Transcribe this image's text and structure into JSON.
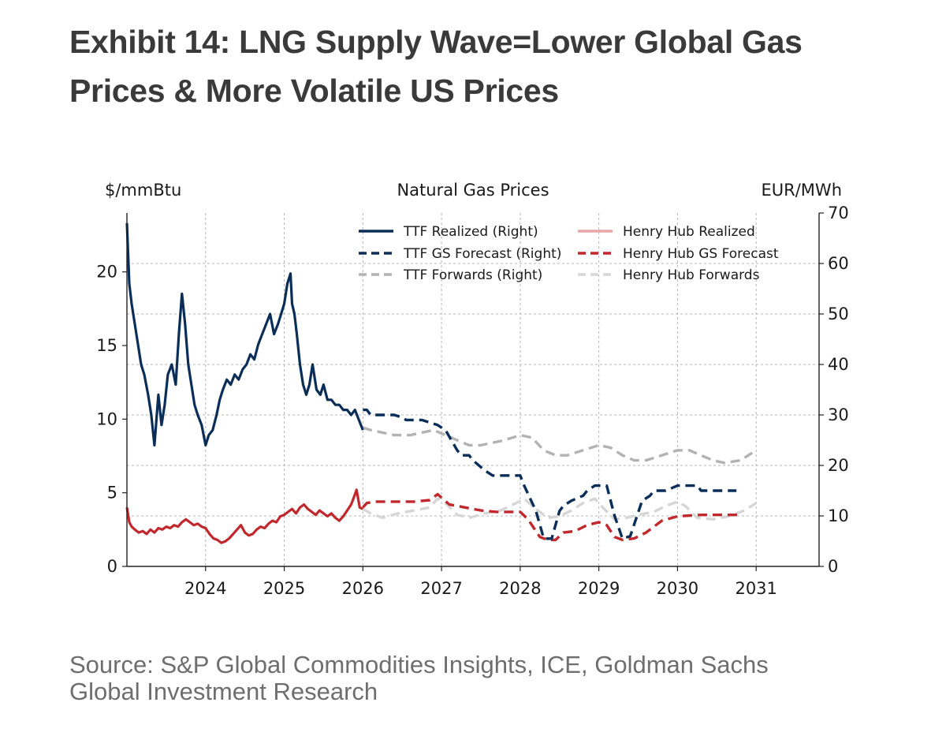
{
  "title": {
    "line1": "Exhibit 14: LNG Supply Wave=Lower Global Gas",
    "line2": "Prices & More Volatile US Prices"
  },
  "source": {
    "line1": "Source: S&P Global Commodities Insights, ICE, Goldman Sachs",
    "line2": "Global Investment Research"
  },
  "chart_data": {
    "type": "line",
    "title": "Natural Gas Prices",
    "ylabel_left": "$/mmBtu",
    "ylabel_right": "EUR/MWh",
    "xlim": [
      2023.0,
      2031.8
    ],
    "ylim_left": [
      0,
      24
    ],
    "ylim_right": [
      0,
      70
    ],
    "xticks": [
      2024,
      2025,
      2026,
      2027,
      2028,
      2029,
      2030,
      2031
    ],
    "xtick_labels": [
      "2024",
      "2025",
      "2026",
      "2027",
      "2028",
      "2029",
      "2030",
      "2031"
    ],
    "yticks_left": [
      0,
      5,
      10,
      15,
      20
    ],
    "yticks_left_labels": [
      "0",
      "5",
      "10",
      "15",
      "20"
    ],
    "yticks_right": [
      0,
      10,
      20,
      30,
      40,
      50,
      60,
      70
    ],
    "yticks_right_labels": [
      "0",
      "10",
      "20",
      "30",
      "40",
      "50",
      "60",
      "70"
    ],
    "grid": true,
    "legend_position": "top-right",
    "series": [
      {
        "name": "TTF Realized (Right)",
        "axis": "right",
        "style": "solid",
        "color": "#0b2e59",
        "x": [
          2023.0,
          2023.03,
          2023.06,
          2023.1,
          2023.14,
          2023.18,
          2023.22,
          2023.27,
          2023.31,
          2023.35,
          2023.4,
          2023.44,
          2023.48,
          2023.52,
          2023.57,
          2023.62,
          2023.66,
          2023.7,
          2023.74,
          2023.78,
          2023.82,
          2023.86,
          2023.9,
          2023.95,
          2024.0,
          2024.04,
          2024.09,
          2024.14,
          2024.18,
          2024.22,
          2024.27,
          2024.32,
          2024.37,
          2024.42,
          2024.47,
          2024.52,
          2024.57,
          2024.62,
          2024.67,
          2024.72,
          2024.77,
          2024.82,
          2024.87,
          2024.92,
          2024.96,
          2025.0,
          2025.04,
          2025.08,
          2025.1,
          2025.13,
          2025.16,
          2025.2,
          2025.24,
          2025.28,
          2025.32,
          2025.36,
          2025.41,
          2025.46,
          2025.5,
          2025.55,
          2025.6,
          2025.65,
          2025.7,
          2025.75,
          2025.8,
          2025.85,
          2025.9,
          2025.95,
          2026.0
        ],
        "y": [
          68,
          56,
          52,
          48,
          44,
          40,
          38,
          34,
          30,
          24,
          34,
          28,
          32,
          38,
          40,
          36,
          46,
          54,
          48,
          40,
          36,
          32,
          30,
          28,
          24,
          26,
          27,
          30,
          33,
          35,
          37,
          36,
          38,
          37,
          39,
          40,
          42,
          41,
          44,
          46,
          48,
          50,
          46,
          48,
          50,
          52,
          56,
          58,
          52,
          50,
          46,
          40,
          36,
          34,
          36,
          40,
          35,
          34,
          36,
          33,
          33,
          32,
          32,
          31,
          31,
          30,
          31,
          29,
          27
        ]
      },
      {
        "name": "TTF GS Forecast (Right)",
        "axis": "right",
        "style": "dashed",
        "color": "#0b2e59",
        "x": [
          2026.0,
          2026.05,
          2026.1,
          2026.4,
          2026.5,
          2026.55,
          2026.75,
          2026.85,
          2026.95,
          2027.05,
          2027.2,
          2027.25,
          2027.35,
          2027.4,
          2027.55,
          2027.65,
          2028.0,
          2028.05,
          2028.2,
          2028.3,
          2028.4,
          2028.5,
          2028.55,
          2028.65,
          2028.8,
          2028.85,
          2028.95,
          2029.1,
          2029.2,
          2029.3,
          2029.4,
          2029.55,
          2029.65,
          2029.7,
          2029.8,
          2029.85,
          2030.0,
          2030.25,
          2030.3,
          2030.75
        ],
        "y": [
          31,
          31,
          30,
          30,
          29.5,
          29,
          29,
          28.5,
          28,
          27,
          23,
          22,
          22,
          21,
          19,
          18,
          18,
          16,
          11,
          5.5,
          5.5,
          11,
          12,
          13,
          14,
          15,
          16,
          16,
          10,
          5.5,
          6,
          13,
          14,
          15,
          15,
          15,
          16,
          16,
          15,
          15
        ]
      },
      {
        "name": "TTF Forwards (Right)",
        "axis": "right",
        "style": "dashed",
        "color": "#b3b3b3",
        "x": [
          2026.0,
          2026.1,
          2026.25,
          2026.4,
          2026.6,
          2026.75,
          2026.9,
          2027.05,
          2027.2,
          2027.35,
          2027.5,
          2027.65,
          2027.8,
          2028.0,
          2028.15,
          2028.3,
          2028.45,
          2028.6,
          2028.8,
          2029.0,
          2029.15,
          2029.3,
          2029.45,
          2029.6,
          2029.8,
          2030.0,
          2030.15,
          2030.3,
          2030.45,
          2030.6,
          2030.8,
          2030.95
        ],
        "y": [
          27.5,
          27,
          26.5,
          26,
          26,
          26.5,
          27,
          26,
          25,
          24,
          24,
          24.5,
          25,
          26,
          25.5,
          23,
          22,
          22,
          23,
          24,
          23.5,
          22,
          21,
          21,
          22,
          23,
          23,
          22,
          21,
          20.5,
          21,
          22.5
        ]
      },
      {
        "name": "Henry Hub Realized",
        "axis": "left",
        "style": "solid",
        "color": "#c0282d",
        "x": [
          2023.0,
          2023.03,
          2023.06,
          2023.1,
          2023.15,
          2023.2,
          2023.25,
          2023.3,
          2023.35,
          2023.4,
          2023.45,
          2023.5,
          2023.55,
          2023.6,
          2023.65,
          2023.7,
          2023.75,
          2023.8,
          2023.85,
          2023.9,
          2023.95,
          2024.0,
          2024.05,
          2024.1,
          2024.15,
          2024.2,
          2024.25,
          2024.3,
          2024.35,
          2024.4,
          2024.45,
          2024.5,
          2024.55,
          2024.6,
          2024.65,
          2024.7,
          2024.75,
          2024.8,
          2024.85,
          2024.9,
          2024.95,
          2025.0,
          2025.05,
          2025.1,
          2025.15,
          2025.2,
          2025.25,
          2025.3,
          2025.35,
          2025.4,
          2025.45,
          2025.5,
          2025.55,
          2025.6,
          2025.65,
          2025.7,
          2025.75,
          2025.8,
          2025.85,
          2025.88,
          2025.92,
          2025.96,
          2026.0
        ],
        "y": [
          4.0,
          3.0,
          2.7,
          2.5,
          2.3,
          2.4,
          2.2,
          2.5,
          2.3,
          2.6,
          2.5,
          2.7,
          2.6,
          2.8,
          2.7,
          3.0,
          3.2,
          3.0,
          2.8,
          2.9,
          2.7,
          2.6,
          2.2,
          1.9,
          1.8,
          1.6,
          1.7,
          1.9,
          2.2,
          2.5,
          2.8,
          2.3,
          2.1,
          2.2,
          2.5,
          2.7,
          2.6,
          2.9,
          3.1,
          3.0,
          3.4,
          3.5,
          3.7,
          3.9,
          3.6,
          4.0,
          4.2,
          3.9,
          3.7,
          3.5,
          3.8,
          3.6,
          3.4,
          3.6,
          3.3,
          3.1,
          3.4,
          3.8,
          4.2,
          4.6,
          5.2,
          4.0,
          3.9
        ]
      },
      {
        "name": "Henry Hub GS Forecast",
        "axis": "left",
        "style": "dashed",
        "color": "#c0282d",
        "x": [
          2026.0,
          2026.05,
          2026.15,
          2026.4,
          2026.65,
          2026.85,
          2026.95,
          2027.1,
          2027.3,
          2027.5,
          2027.7,
          2028.0,
          2028.1,
          2028.25,
          2028.35,
          2028.45,
          2028.55,
          2028.7,
          2028.85,
          2029.0,
          2029.1,
          2029.2,
          2029.3,
          2029.45,
          2029.6,
          2029.7,
          2029.8,
          2030.0,
          2030.3,
          2030.6,
          2030.8
        ],
        "y": [
          4.0,
          4.3,
          4.4,
          4.4,
          4.4,
          4.5,
          4.9,
          4.2,
          4.0,
          3.8,
          3.7,
          3.7,
          3.2,
          2.0,
          1.8,
          1.8,
          2.3,
          2.4,
          2.8,
          3.0,
          2.8,
          2.0,
          1.8,
          1.9,
          2.3,
          2.7,
          3.1,
          3.4,
          3.5,
          3.5,
          3.5
        ]
      },
      {
        "name": "Henry Hub Forwards",
        "axis": "left",
        "style": "dashed",
        "color": "#d6d6d6",
        "x": [
          2026.0,
          2026.1,
          2026.25,
          2026.45,
          2026.65,
          2026.85,
          2026.95,
          2027.05,
          2027.2,
          2027.35,
          2027.55,
          2027.75,
          2027.95,
          2028.05,
          2028.2,
          2028.35,
          2028.5,
          2028.65,
          2028.8,
          2028.95,
          2029.05,
          2029.2,
          2029.35,
          2029.5,
          2029.7,
          2029.85,
          2030.0,
          2030.1,
          2030.25,
          2030.45,
          2030.65,
          2030.85,
          2031.0
        ],
        "y": [
          3.9,
          3.6,
          3.3,
          3.6,
          3.8,
          4.0,
          4.6,
          4.3,
          3.5,
          3.3,
          3.6,
          3.8,
          4.3,
          4.6,
          3.9,
          3.3,
          3.4,
          3.8,
          4.3,
          4.6,
          4.0,
          3.2,
          3.3,
          3.5,
          3.7,
          4.1,
          4.4,
          4.1,
          3.3,
          3.2,
          3.4,
          3.8,
          4.3
        ]
      }
    ]
  }
}
